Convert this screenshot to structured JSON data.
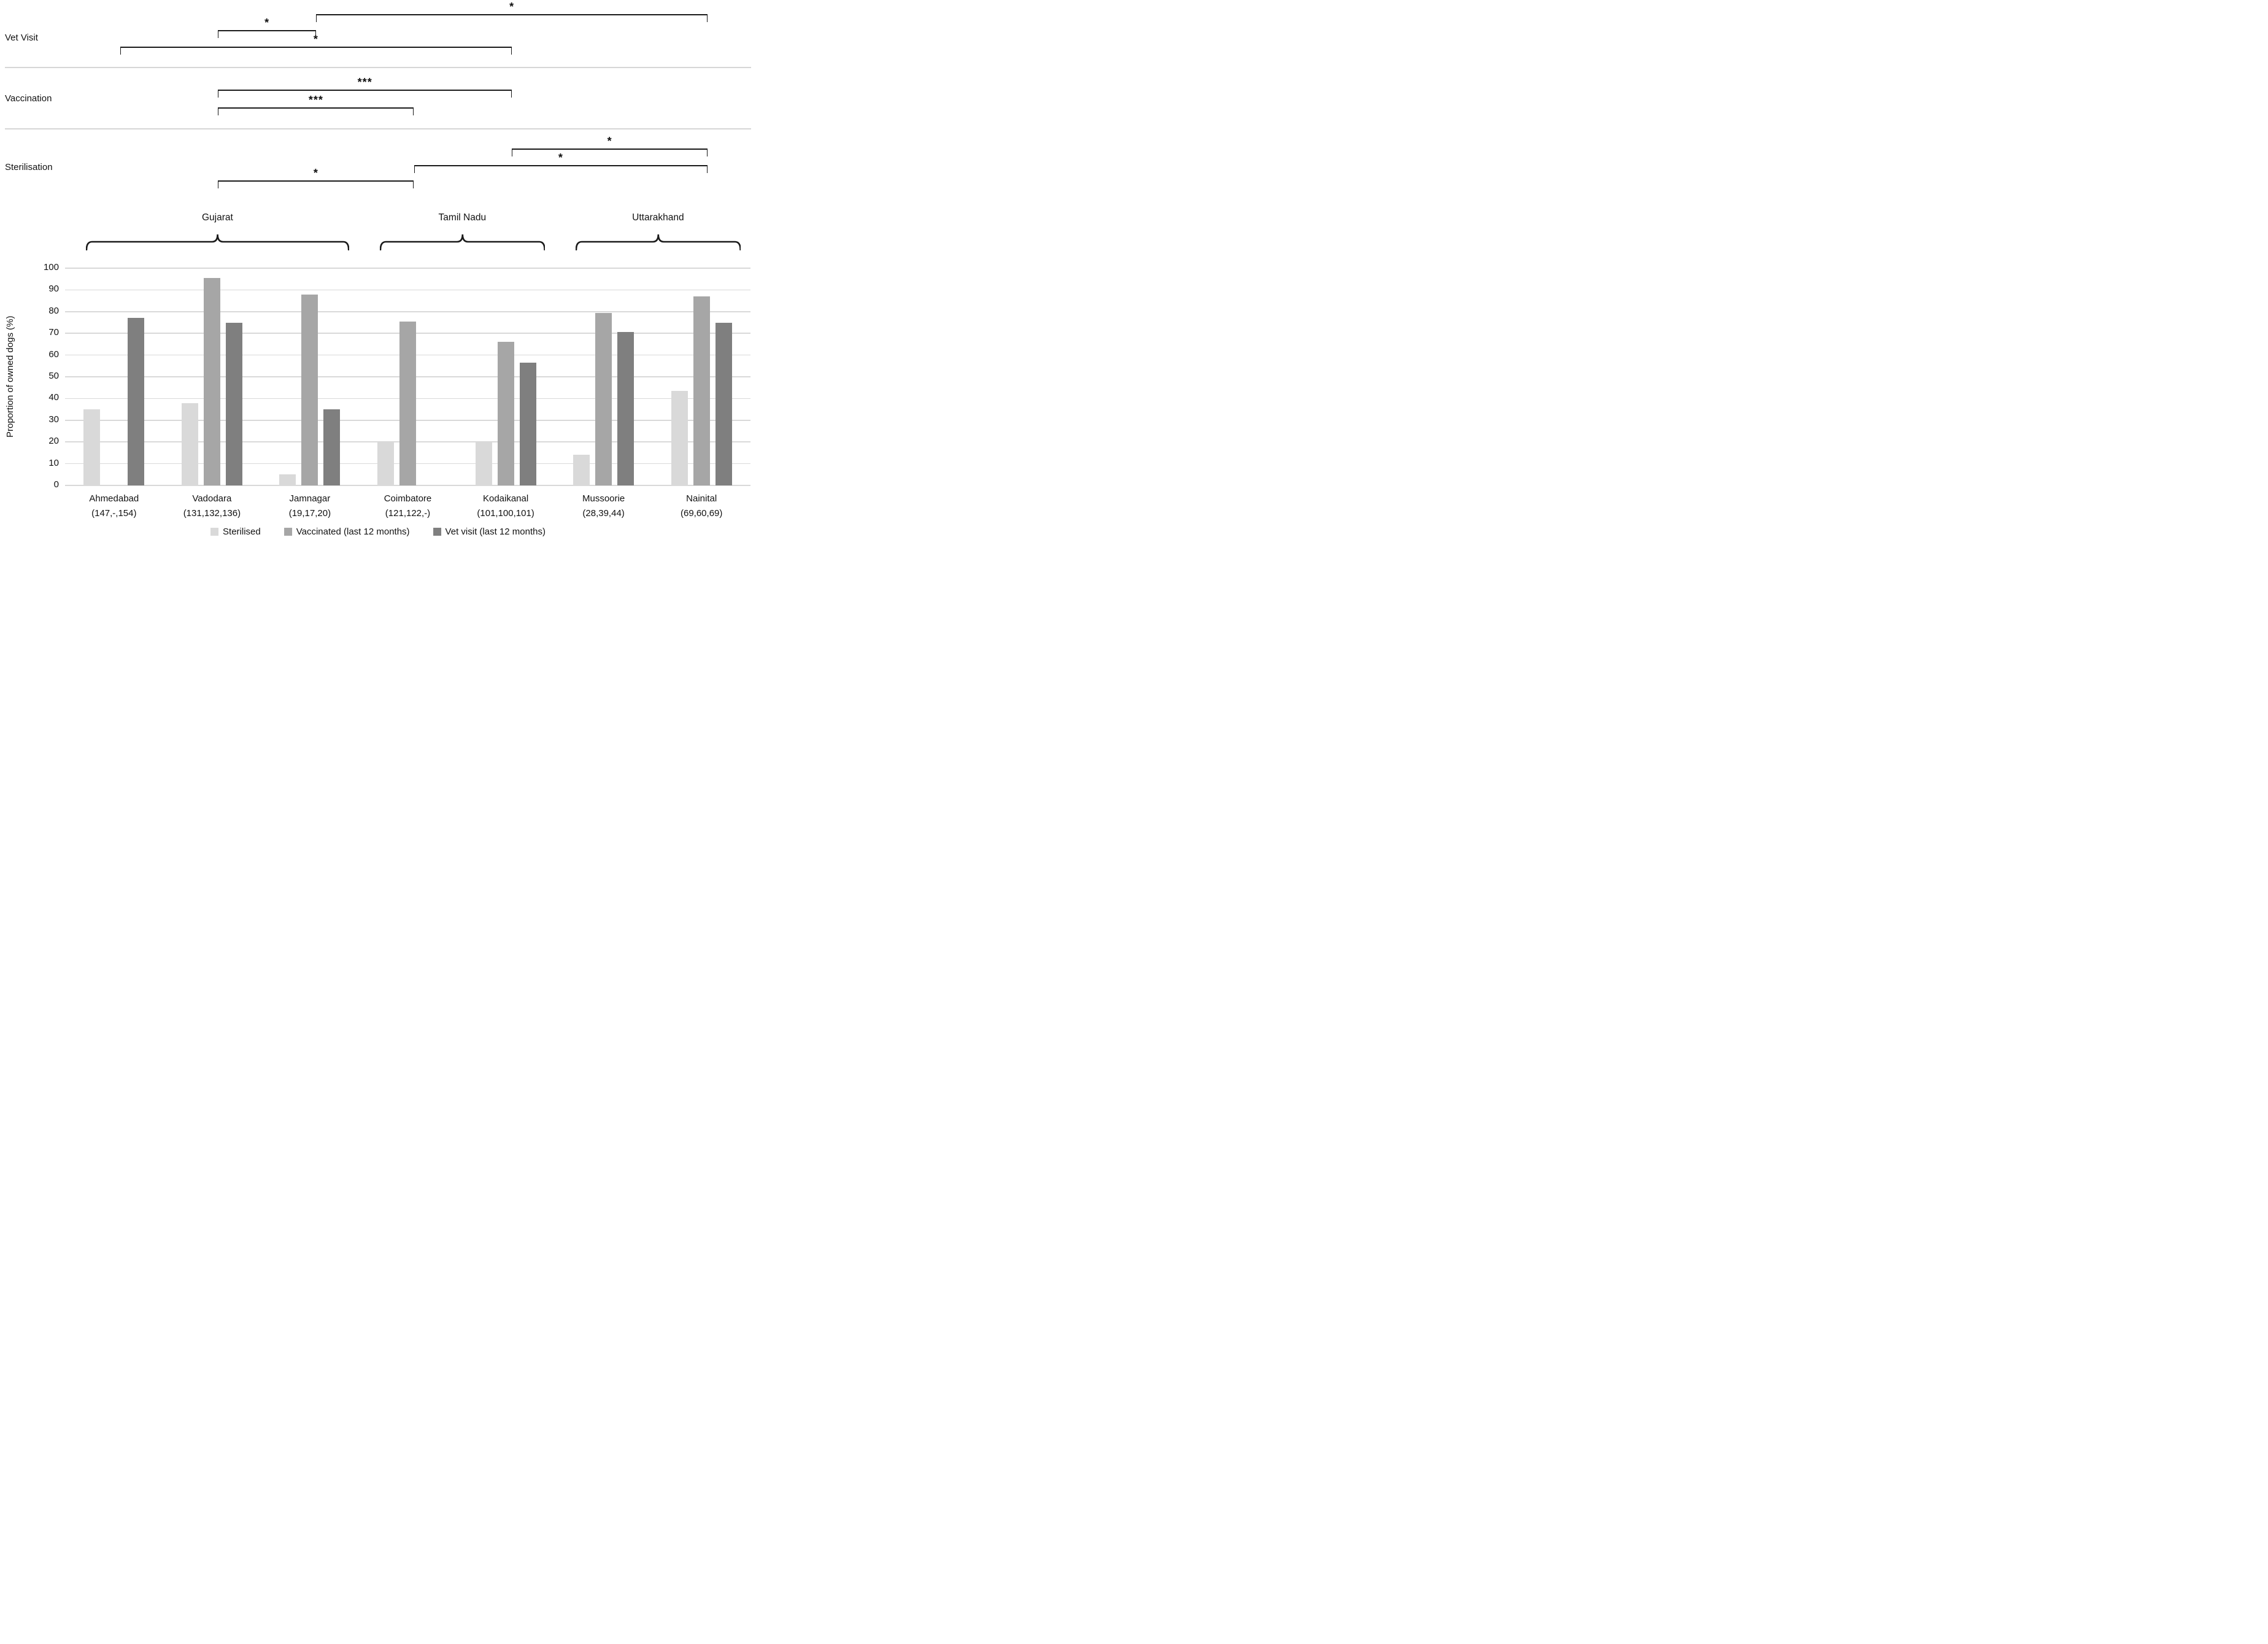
{
  "chart_data": {
    "type": "bar",
    "title": "",
    "xlabel": "",
    "ylabel": "Proportion of owned dogs (%)",
    "ylim": [
      0,
      100
    ],
    "ytick_step": 10,
    "grid": true,
    "legend_position": "bottom",
    "categories": [
      "Ahmedabad",
      "Vadodara",
      "Jamnagar",
      "Coimbatore",
      "Kodaikanal",
      "Mussoorie",
      "Nainital"
    ],
    "category_sample_sizes": [
      "(147,-,154)",
      "(131,132,136)",
      "(19,17,20)",
      "(121,122,-)",
      "(101,100,101)",
      "(28,39,44)",
      "(69,60,69)"
    ],
    "state_groups": [
      {
        "label": "Gujarat",
        "from": "Ahmedabad",
        "to": "Jamnagar"
      },
      {
        "label": "Tamil Nadu",
        "from": "Coimbatore",
        "to": "Kodaikanal"
      },
      {
        "label": "Uttarakhand",
        "from": "Mussoorie",
        "to": "Nainital"
      }
    ],
    "series": [
      {
        "name": "Sterilised",
        "color": "#d9d9d9",
        "values": [
          35,
          38,
          5,
          20,
          20,
          14,
          43.5
        ]
      },
      {
        "name": "Vaccinated (last 12 months)",
        "color": "#a6a6a6",
        "values": [
          null,
          95.5,
          88,
          75.5,
          66,
          79.5,
          87
        ]
      },
      {
        "name": "Vet visit (last 12 months)",
        "color": "#7f7f7f",
        "values": [
          77,
          75,
          35,
          null,
          56.5,
          70.5,
          75
        ]
      }
    ]
  },
  "significance": {
    "sections": [
      {
        "label": "Vet Visit",
        "brackets": [
          {
            "from": "Jamnagar",
            "to": "Nainital",
            "stars": "*"
          },
          {
            "from": "Vadodara",
            "to": "Jamnagar",
            "stars": "*"
          },
          {
            "from": "Ahmedabad",
            "to": "Kodaikanal",
            "stars": "*"
          }
        ]
      },
      {
        "label": "Vaccination",
        "brackets": [
          {
            "from": "Vadodara",
            "to": "Kodaikanal",
            "stars": "***"
          },
          {
            "from": "Vadodara",
            "to": "Coimbatore",
            "stars": "***"
          }
        ]
      },
      {
        "label": "Sterilisation",
        "brackets": [
          {
            "from": "Kodaikanal",
            "to": "Nainital",
            "stars": "*"
          },
          {
            "from": "Coimbatore",
            "to": "Nainital",
            "stars": "*"
          },
          {
            "from": "Vadodara",
            "to": "Coimbatore",
            "stars": "*"
          }
        ]
      }
    ]
  },
  "colors": {
    "bracket": "#1a1a1a",
    "gridline": "#d9d9d9",
    "divider": "#d6d6d6",
    "text": "#111111"
  }
}
